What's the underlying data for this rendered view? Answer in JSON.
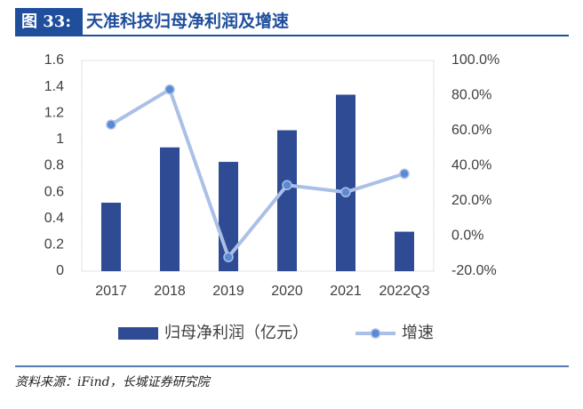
{
  "chart_data": {
    "type": "bar_line",
    "figure_label": "图 33:",
    "title": "天准科技归母净利润及增速",
    "source": "资料来源：iFind，长城证券研究院",
    "categories": [
      "2017",
      "2018",
      "2019",
      "2020",
      "2021",
      "2022Q3"
    ],
    "series": [
      {
        "name": "归母净利润（亿元）",
        "type": "bar",
        "color": "#2f4b94",
        "values": [
          0.52,
          0.94,
          0.83,
          1.07,
          1.34,
          0.3
        ]
      },
      {
        "name": "增速",
        "type": "line",
        "axis": "y2",
        "color": "#abc0e6",
        "marker_color": "#5a8ad6",
        "values": [
          63.5,
          83.5,
          -12,
          29,
          25,
          35.5
        ]
      }
    ],
    "ylim": [
      0,
      1.6
    ],
    "yticks": [
      0,
      0.2,
      0.4,
      0.6,
      0.8,
      1,
      1.2,
      1.4,
      1.6
    ],
    "y2lim": [
      -20,
      100
    ],
    "y2ticks": [
      {
        "value": -20,
        "label": "-20.0%"
      },
      {
        "value": 0,
        "label": "0.0%"
      },
      {
        "value": 20,
        "label": "20.0%"
      },
      {
        "value": 40,
        "label": "40.0%"
      },
      {
        "value": 60,
        "label": "60.0%"
      },
      {
        "value": 80,
        "label": "80.0%"
      },
      {
        "value": 100,
        "label": "100.0%"
      }
    ],
    "legend": "bottom"
  }
}
